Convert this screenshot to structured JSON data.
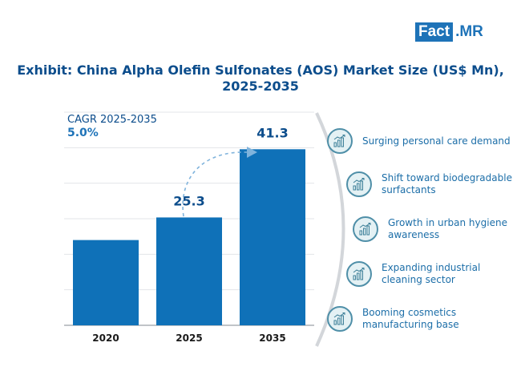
{
  "brand": {
    "box_text": "Fact",
    "rest_text": ".MR",
    "color": "#1e73b8"
  },
  "title": "Exhibit: China Alpha Olefin Sulfonates (AOS) Market Size (US$ Mn), 2025-2035",
  "cagr": {
    "label": "CAGR 2025-2035",
    "value": "5.0%"
  },
  "chart_data": {
    "type": "bar",
    "categories": [
      "2020",
      "2025",
      "2035"
    ],
    "values": [
      20,
      25.3,
      41.3
    ],
    "value_labels": [
      "",
      "25.3",
      "41.3"
    ],
    "title": "Exhibit: China Alpha Olefin Sulfonates (AOS) Market Size (US$ Mn), 2025-2035",
    "ylim": [
      0,
      50
    ],
    "grid": true,
    "bar_color": "#0f71b8"
  },
  "drivers": [
    {
      "text": "Surging personal care demand",
      "icon": "growth-chart-icon"
    },
    {
      "text": "Shift toward biodegradable surfactants",
      "icon": "growth-chart-icon"
    },
    {
      "text": "Growth in urban hygiene awareness",
      "icon": "growth-chart-icon"
    },
    {
      "text": "Expanding industrial cleaning sector",
      "icon": "growth-chart-icon"
    },
    {
      "text": "Booming cosmetics manufacturing base",
      "icon": "growth-chart-icon"
    }
  ]
}
